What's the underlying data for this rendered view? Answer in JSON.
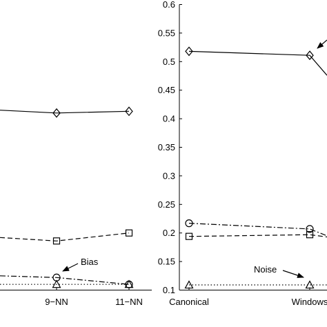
{
  "chart_data": [
    {
      "type": "line",
      "panel": "left",
      "categories": [
        "9−NN",
        "11−NN"
      ],
      "series": [
        {
          "values": [
            0.41,
            0.413
          ],
          "marker": "diamond",
          "style": "solid"
        },
        {
          "values": [
            0.186,
            0.2
          ],
          "marker": "square",
          "style": "dashed"
        },
        {
          "values": [
            0.122,
            0.11
          ],
          "marker": "circle",
          "style": "dashdot"
        },
        {
          "values": [
            0.11,
            0.11
          ],
          "marker": "triangle",
          "style": "dotted"
        }
      ],
      "annotations": [
        {
          "text": "Bias"
        }
      ]
    },
    {
      "type": "line",
      "panel": "right",
      "categories": [
        "Canonical",
        "Windows"
      ],
      "y_ticks": [
        "0.1",
        "0.15",
        "0.2",
        "0.25",
        "0.3",
        "0.35",
        "0.4",
        "0.45",
        "0.5",
        "0.55",
        "0.6"
      ],
      "ylim": [
        0.1,
        0.6
      ],
      "series": [
        {
          "values": [
            0.518,
            0.511
          ],
          "marker": "diamond",
          "style": "solid"
        },
        {
          "values": [
            0.194,
            0.197
          ],
          "marker": "square",
          "style": "dashed"
        },
        {
          "values": [
            0.217,
            0.207
          ],
          "marker": "circle",
          "style": "dashdot"
        },
        {
          "values": [
            0.109,
            0.109
          ],
          "marker": "triangle",
          "style": "dotted"
        }
      ],
      "annotations": [
        {
          "text": "Noise"
        }
      ]
    }
  ]
}
